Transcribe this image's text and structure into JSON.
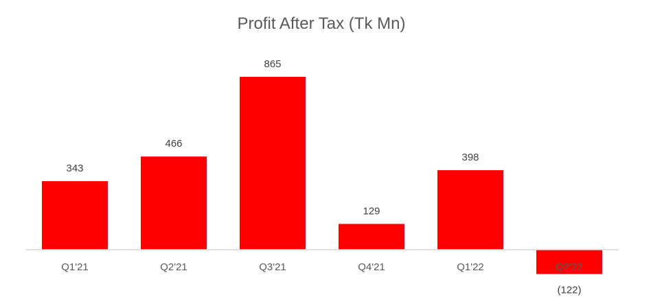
{
  "chart_data": {
    "type": "bar",
    "title": "Profit After Tax (Tk Mn)",
    "categories": [
      "Q1'21",
      "Q2'21",
      "Q3'21",
      "Q4'21",
      "Q1'22",
      "Q2'22"
    ],
    "values": [
      343,
      466,
      865,
      129,
      398,
      -122
    ],
    "data_labels": [
      "343",
      "466",
      "865",
      "129",
      "398",
      "(122)"
    ],
    "xlabel": "",
    "ylabel": "",
    "grid": false,
    "legend": "none",
    "colors": {
      "bar": "#ff0000",
      "baseline": "#d9d9d9",
      "title": "#595959",
      "tick_label": "#595959",
      "data_label": "#404040"
    }
  }
}
